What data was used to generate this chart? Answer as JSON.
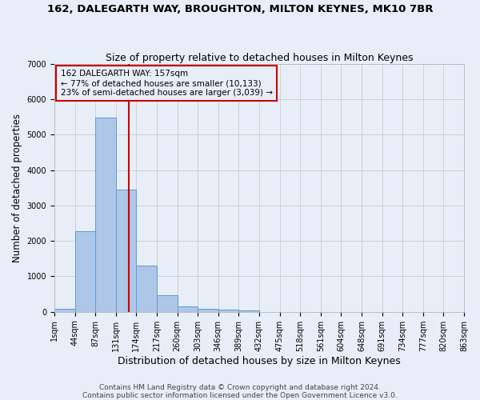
{
  "title": "162, DALEGARTH WAY, BROUGHTON, MILTON KEYNES, MK10 7BR",
  "subtitle": "Size of property relative to detached houses in Milton Keynes",
  "xlabel": "Distribution of detached houses by size in Milton Keynes",
  "ylabel": "Number of detached properties",
  "bin_labels": [
    "1sqm",
    "44sqm",
    "87sqm",
    "131sqm",
    "174sqm",
    "217sqm",
    "260sqm",
    "303sqm",
    "346sqm",
    "389sqm",
    "432sqm",
    "475sqm",
    "518sqm",
    "561sqm",
    "604sqm",
    "648sqm",
    "691sqm",
    "734sqm",
    "777sqm",
    "820sqm",
    "863sqm"
  ],
  "bar_values": [
    80,
    2280,
    5480,
    3450,
    1310,
    460,
    160,
    90,
    60,
    30,
    0,
    0,
    0,
    0,
    0,
    0,
    0,
    0,
    0,
    0
  ],
  "bar_color": "#aec6e8",
  "bar_edge_color": "#5b9bd5",
  "grid_color": "#d0d0d0",
  "background_color": "#e8eef7",
  "annotation_line1": "162 DALEGARTH WAY: 157sqm",
  "annotation_line2": "← 77% of detached houses are smaller (10,133)",
  "annotation_line3": "23% of semi-detached houses are larger (3,039) →",
  "annotation_box_color": "#cc0000",
  "vline_color": "#cc0000",
  "vline_pos": 3.63,
  "ylim": [
    0,
    7000
  ],
  "yticks": [
    0,
    1000,
    2000,
    3000,
    4000,
    5000,
    6000,
    7000
  ],
  "footer": "Contains HM Land Registry data © Crown copyright and database right 2024.\nContains public sector information licensed under the Open Government Licence v3.0.",
  "title_fontsize": 9.5,
  "subtitle_fontsize": 9,
  "xlabel_fontsize": 9,
  "ylabel_fontsize": 8.5,
  "tick_fontsize": 7,
  "footer_fontsize": 6.5,
  "annotation_fontsize": 7.5
}
